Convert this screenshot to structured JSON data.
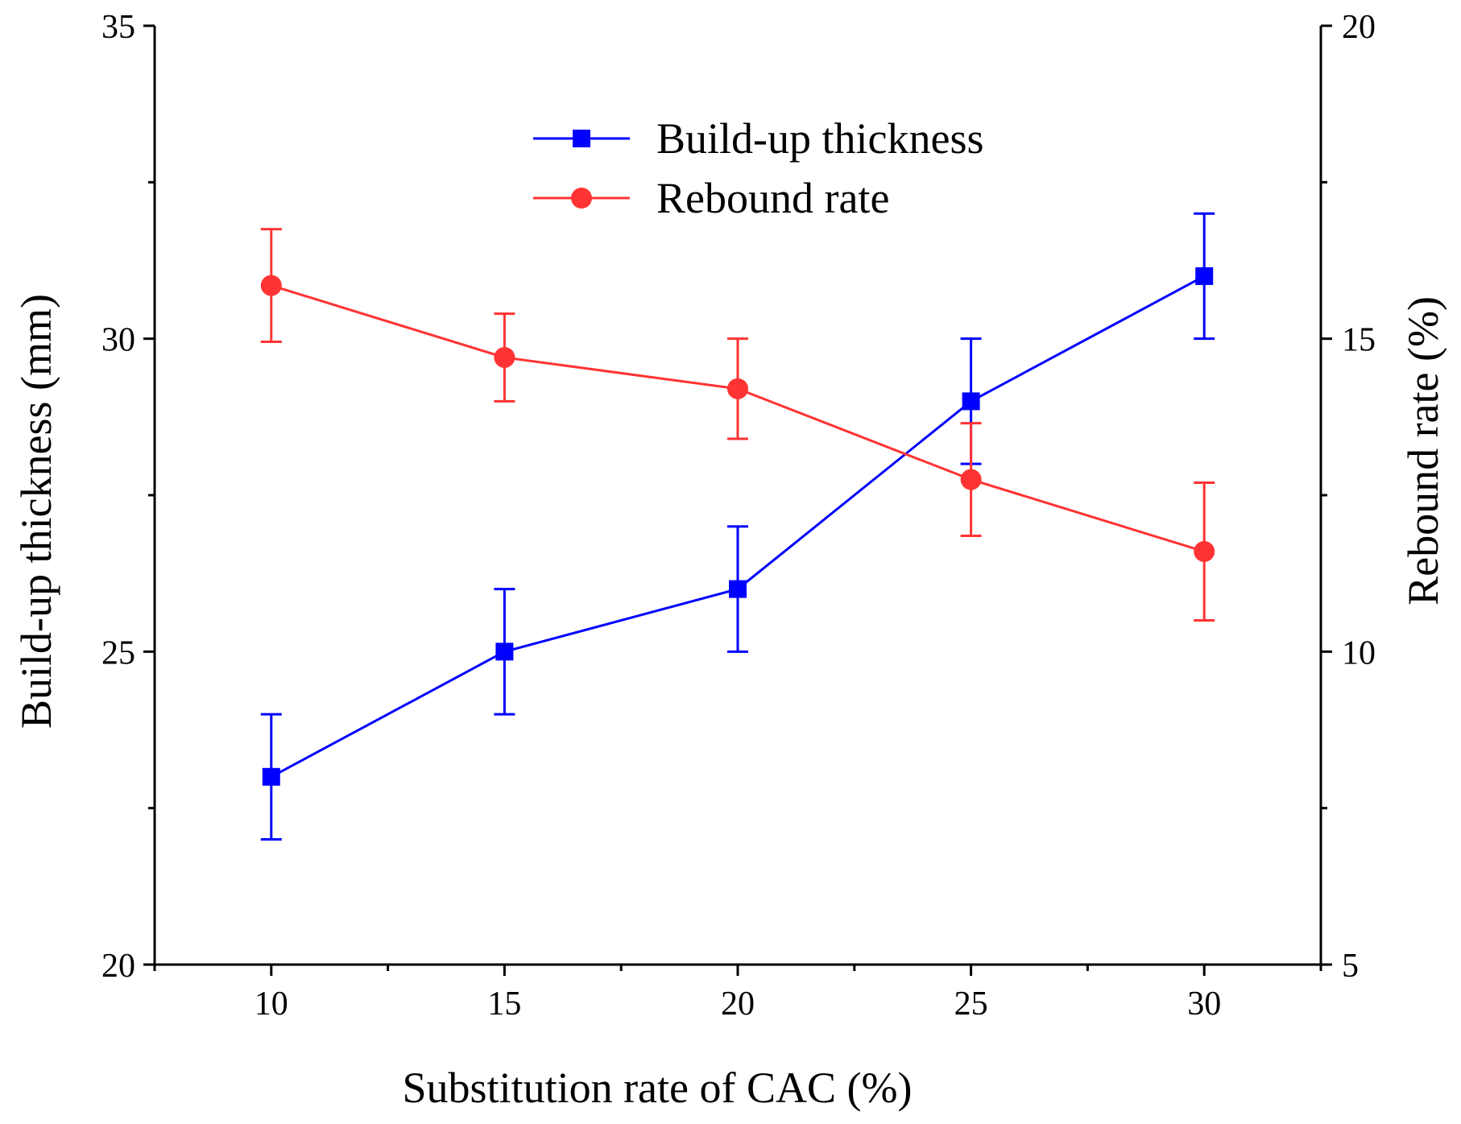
{
  "chart_data": {
    "type": "line",
    "title": "",
    "xlabel": "Substitution rate of CAC (%)",
    "ylabel_left": "Build-up thickness (mm)",
    "ylabel_right": "Rebound rate (%)",
    "xlim": [
      7.5,
      32.5
    ],
    "ylim_left": [
      20,
      35
    ],
    "ylim_right": [
      5,
      20
    ],
    "x_ticks": [
      10,
      15,
      20,
      25,
      30
    ],
    "x_tick_labels": [
      "10",
      "15",
      "20",
      "25",
      "30"
    ],
    "y_left_ticks": [
      20,
      25,
      30,
      35
    ],
    "y_left_tick_labels": [
      "20",
      "25",
      "30",
      "35"
    ],
    "y_right_ticks": [
      5,
      10,
      15,
      20
    ],
    "y_right_tick_labels": [
      "5",
      "10",
      "15",
      "20"
    ],
    "legend_position": "top-center",
    "grid": false,
    "x": [
      10,
      15,
      20,
      25,
      30
    ],
    "series": [
      {
        "name": "Build-up thickness",
        "axis": "left",
        "color": "#0000ff",
        "marker": "square",
        "values": [
          23,
          25,
          26,
          29,
          31
        ],
        "error": [
          1,
          1,
          1,
          1,
          1
        ]
      },
      {
        "name": "Rebound rate",
        "axis": "right",
        "color": "#ff3333",
        "marker": "circle",
        "values": [
          15.85,
          14.7,
          14.2,
          12.75,
          11.6
        ],
        "error": [
          0.9,
          0.7,
          0.8,
          0.9,
          1.1
        ]
      }
    ]
  }
}
